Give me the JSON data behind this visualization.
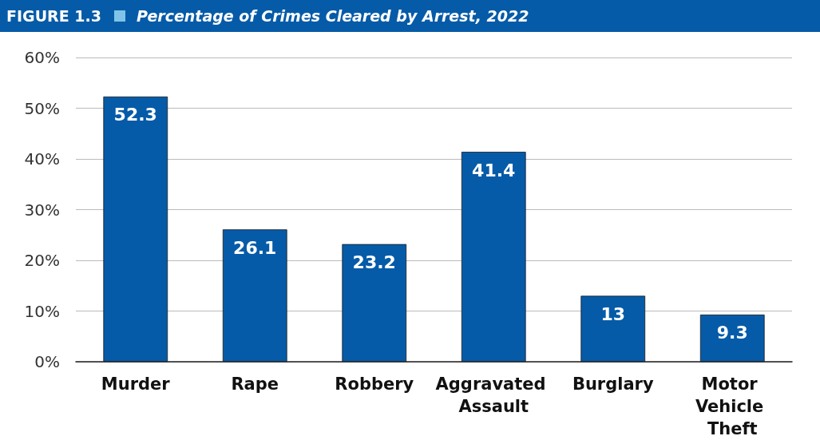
{
  "chart_data": {
    "type": "bar",
    "title": "FIGURE 1.3",
    "subtitle": "Percentage of Crimes Cleared by Arrest, 2022",
    "categories": [
      "Murder",
      "Rape",
      "Robbery",
      "Aggravated Assault",
      "Burglary",
      "Motor Vehicle Theft"
    ],
    "values": [
      52.3,
      26.1,
      23.2,
      41.4,
      13,
      9.3
    ],
    "color": "#065ba8",
    "ylim": [
      0,
      60
    ],
    "yticks": [
      {
        "value": 0,
        "label": "0%"
      },
      {
        "value": 10,
        "label": "10%"
      },
      {
        "value": 20,
        "label": "20%"
      },
      {
        "value": 30,
        "label": "30%"
      },
      {
        "value": 40,
        "label": "40%"
      },
      {
        "value": 50,
        "label": "50%"
      },
      {
        "value": 60,
        "label": "60%"
      }
    ],
    "grid": true,
    "data_labels": true
  }
}
